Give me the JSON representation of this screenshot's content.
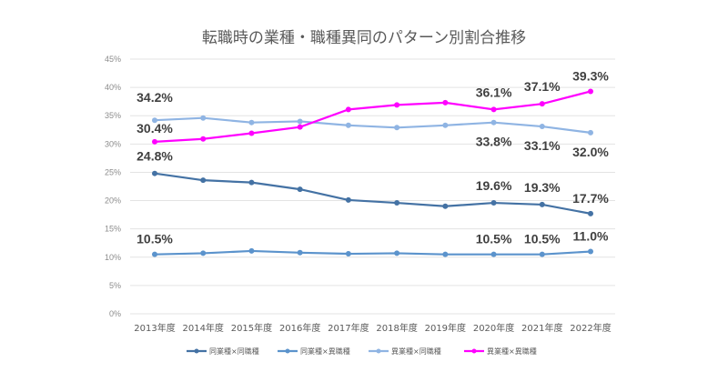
{
  "chart_data": {
    "type": "line",
    "title": "転職時の業種・職種異同のパターン別割合推移",
    "categories": [
      "2013年度",
      "2014年度",
      "2015年度",
      "2016年度",
      "2017年度",
      "2018年度",
      "2019年度",
      "2020年度",
      "2021年度",
      "2022年度"
    ],
    "ylim": [
      0,
      45
    ],
    "yticks": [
      "0%",
      "5%",
      "10%",
      "15%",
      "20%",
      "25%",
      "30%",
      "35%",
      "40%",
      "45%"
    ],
    "grid": true,
    "legend_position": "bottom",
    "series": [
      {
        "name": "同業種×同職種",
        "color": "#4472a4",
        "values": [
          24.8,
          23.6,
          23.2,
          22.0,
          20.1,
          19.6,
          19.0,
          19.6,
          19.3,
          17.7
        ],
        "labels": {
          "0": "24.8%",
          "7": "19.6%",
          "8": "19.3%",
          "9": "17.7%"
        }
      },
      {
        "name": "同業種×異職種",
        "color": "#5b93cc",
        "values": [
          10.5,
          10.7,
          11.1,
          10.8,
          10.6,
          10.7,
          10.5,
          10.5,
          10.5,
          11.0
        ],
        "labels": {
          "0": "10.5%",
          "7": "10.5%",
          "8": "10.5%",
          "9": "11.0%"
        }
      },
      {
        "name": "異業種×同職種",
        "color": "#8fb4e3",
        "values": [
          34.2,
          34.6,
          33.8,
          34.0,
          33.3,
          32.9,
          33.3,
          33.8,
          33.1,
          32.0
        ],
        "labels": {
          "0": "34.2%",
          "7": "33.8%",
          "8": "33.1%",
          "9": "32.0%"
        }
      },
      {
        "name": "異業種×異職種",
        "color": "#ff00ff",
        "values": [
          30.4,
          30.9,
          31.9,
          33.0,
          36.1,
          36.9,
          37.3,
          36.1,
          37.1,
          39.3
        ],
        "labels": {
          "0": "30.4%",
          "7": "36.1%",
          "8": "37.1%",
          "9": "39.3%"
        }
      }
    ]
  }
}
